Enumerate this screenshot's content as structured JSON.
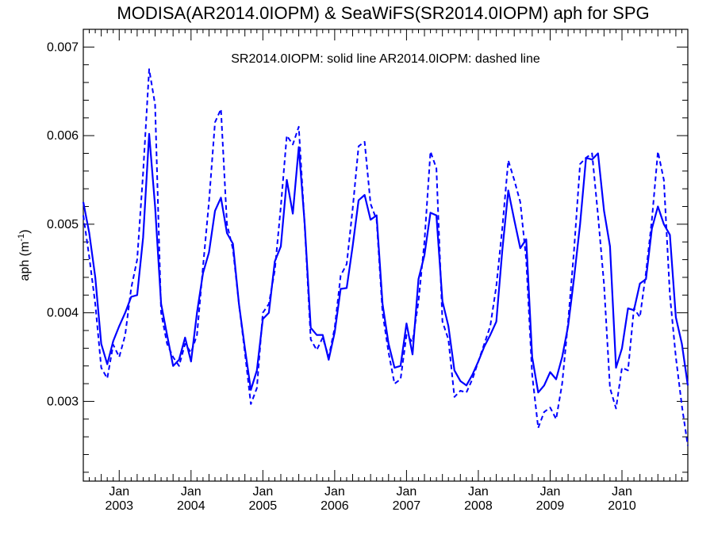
{
  "chart_data": {
    "type": "line",
    "title": "MODISA(AR2014.0IOPM) & SeaWiFS(SR2014.0IOPM)  aph for SPG",
    "annotation": "SR2014.0IOPM: solid line   AR2014.0IOPM: dashed line",
    "ylabel": "aph (m",
    "ylabel_sup": "-1",
    "ylabel_close": ")",
    "ylim": [
      0.0021,
      0.0072
    ],
    "xlim": [
      "2002-07",
      "2010-12"
    ],
    "yticks": [
      "0.003",
      "0.004",
      "0.005",
      "0.006",
      "0.007"
    ],
    "xticks": [
      {
        "month": "Jan",
        "year": "2003"
      },
      {
        "month": "Jan",
        "year": "2004"
      },
      {
        "month": "Jan",
        "year": "2005"
      },
      {
        "month": "Jan",
        "year": "2006"
      },
      {
        "month": "Jan",
        "year": "2007"
      },
      {
        "month": "Jan",
        "year": "2008"
      },
      {
        "month": "Jan",
        "year": "2009"
      },
      {
        "month": "Jan",
        "year": "2010"
      }
    ],
    "x": [
      "2002-07",
      "2002-08",
      "2002-09",
      "2002-10",
      "2002-11",
      "2002-12",
      "2003-01",
      "2003-02",
      "2003-03",
      "2003-04",
      "2003-05",
      "2003-06",
      "2003-07",
      "2003-08",
      "2003-09",
      "2003-10",
      "2003-11",
      "2003-12",
      "2004-01",
      "2004-02",
      "2004-03",
      "2004-04",
      "2004-05",
      "2004-06",
      "2004-07",
      "2004-08",
      "2004-09",
      "2004-10",
      "2004-11",
      "2004-12",
      "2005-01",
      "2005-02",
      "2005-03",
      "2005-04",
      "2005-05",
      "2005-06",
      "2005-07",
      "2005-08",
      "2005-09",
      "2005-10",
      "2005-11",
      "2005-12",
      "2006-01",
      "2006-02",
      "2006-03",
      "2006-04",
      "2006-05",
      "2006-06",
      "2006-07",
      "2006-08",
      "2006-09",
      "2006-10",
      "2006-11",
      "2006-12",
      "2007-01",
      "2007-02",
      "2007-03",
      "2007-04",
      "2007-05",
      "2007-06",
      "2007-07",
      "2007-08",
      "2007-09",
      "2007-10",
      "2007-11",
      "2007-12",
      "2008-01",
      "2008-02",
      "2008-03",
      "2008-04",
      "2008-05",
      "2008-06",
      "2008-07",
      "2008-08",
      "2008-09",
      "2008-10",
      "2008-11",
      "2008-12",
      "2009-01",
      "2009-02",
      "2009-03",
      "2009-04",
      "2009-05",
      "2009-06",
      "2009-07",
      "2009-08",
      "2009-09",
      "2009-10",
      "2009-11",
      "2009-12",
      "2010-01",
      "2010-02",
      "2010-03",
      "2010-04",
      "2010-05",
      "2010-06",
      "2010-07",
      "2010-08",
      "2010-09",
      "2010-10",
      "2010-11",
      "2010-12"
    ],
    "series": [
      {
        "name": "SR2014.0IOPM",
        "style": "solid",
        "color": "#0000ff",
        "values": [
          0.00525,
          0.0049,
          0.0044,
          0.00365,
          0.00342,
          0.00368,
          0.00385,
          0.004,
          0.00418,
          0.0042,
          0.00485,
          0.00602,
          0.0052,
          0.0041,
          0.00375,
          0.0034,
          0.00347,
          0.00372,
          0.00345,
          0.004,
          0.00445,
          0.00468,
          0.00515,
          0.0053,
          0.0049,
          0.00478,
          0.0041,
          0.0036,
          0.00313,
          0.00335,
          0.00393,
          0.004,
          0.00458,
          0.00475,
          0.0055,
          0.00512,
          0.00587,
          0.005,
          0.00383,
          0.00375,
          0.00375,
          0.00347,
          0.00378,
          0.00427,
          0.00428,
          0.00475,
          0.00527,
          0.00533,
          0.00505,
          0.0051,
          0.0041,
          0.00365,
          0.00338,
          0.0034,
          0.00388,
          0.00353,
          0.00438,
          0.00465,
          0.00513,
          0.0051,
          0.00413,
          0.00385,
          0.00335,
          0.00323,
          0.00318,
          0.0033,
          0.00345,
          0.00362,
          0.00375,
          0.0039,
          0.0047,
          0.00538,
          0.00505,
          0.00473,
          0.00483,
          0.0035,
          0.0031,
          0.00318,
          0.00333,
          0.00325,
          0.0035,
          0.00385,
          0.0044,
          0.005,
          0.00575,
          0.00573,
          0.0058,
          0.00515,
          0.00475,
          0.00338,
          0.0036,
          0.00405,
          0.00403,
          0.00433,
          0.00438,
          0.00495,
          0.0052,
          0.005,
          0.00488,
          0.00395,
          0.00365,
          0.00318
        ]
      },
      {
        "name": "AR2014.0IOPM",
        "style": "dashed",
        "color": "#0000ff",
        "values": [
          0.0051,
          0.00463,
          0.0041,
          0.00338,
          0.00326,
          0.00364,
          0.0035,
          0.00375,
          0.00428,
          0.0046,
          0.00558,
          0.00675,
          0.00635,
          0.004,
          0.00365,
          0.0035,
          0.0034,
          0.00365,
          0.00355,
          0.00375,
          0.00452,
          0.00525,
          0.00615,
          0.0063,
          0.005,
          0.00472,
          0.0041,
          0.00355,
          0.00297,
          0.00315,
          0.004,
          0.0041,
          0.00448,
          0.0052,
          0.006,
          0.0059,
          0.0061,
          0.00498,
          0.0037,
          0.00358,
          0.00372,
          0.0035,
          0.00383,
          0.00442,
          0.00455,
          0.00517,
          0.00588,
          0.00593,
          0.00523,
          0.00505,
          0.004,
          0.00355,
          0.0032,
          0.00325,
          0.00375,
          0.00367,
          0.00413,
          0.0048,
          0.00582,
          0.00563,
          0.0039,
          0.0037,
          0.00305,
          0.00312,
          0.0031,
          0.00325,
          0.00345,
          0.00365,
          0.00385,
          0.0043,
          0.00495,
          0.00572,
          0.0055,
          0.00525,
          0.0046,
          0.0033,
          0.0027,
          0.00288,
          0.00293,
          0.0028,
          0.0032,
          0.0039,
          0.00472,
          0.00568,
          0.00575,
          0.0058,
          0.0051,
          0.00432,
          0.00315,
          0.00292,
          0.00338,
          0.00335,
          0.00405,
          0.00395,
          0.00445,
          0.00505,
          0.00582,
          0.0055,
          0.0042,
          0.0035,
          0.00295,
          0.0025
        ]
      }
    ]
  }
}
